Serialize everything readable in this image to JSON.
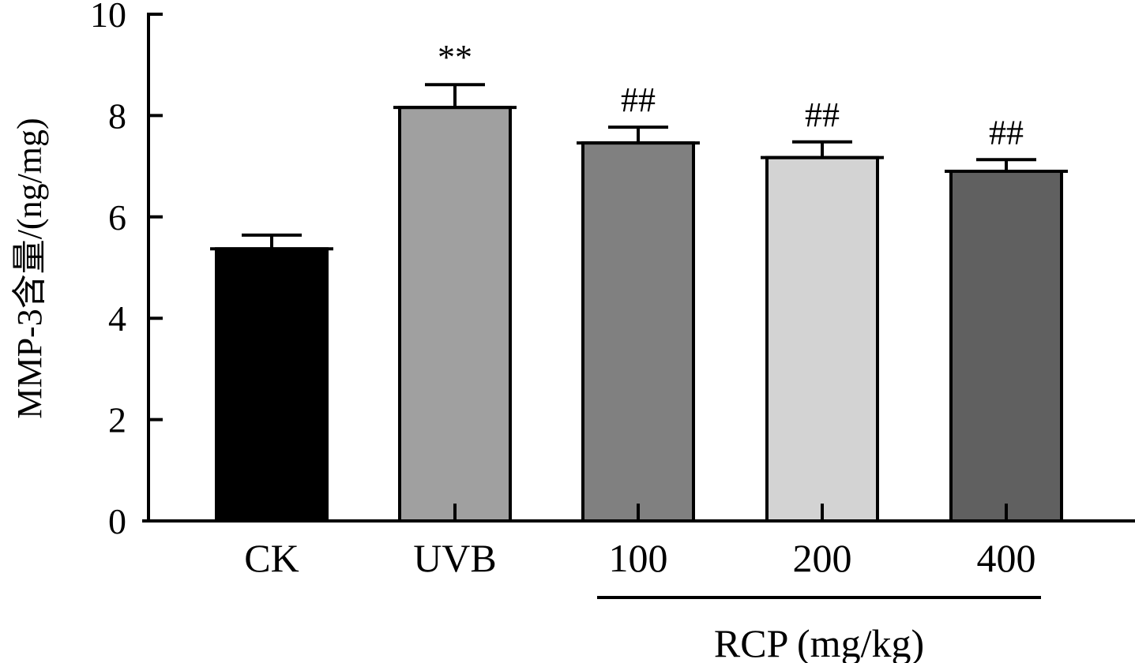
{
  "chart_data": {
    "type": "bar",
    "title": "",
    "ylabel": "MMP-3含量/(ng/mg)",
    "xlabel": "RCP (mg/kg)",
    "xlabel_group_applies_to": [
      "100",
      "200",
      "400"
    ],
    "ylim": [
      0,
      10
    ],
    "yticks": [
      0,
      2,
      4,
      6,
      8,
      10
    ],
    "ytick_labels": [
      "0",
      "2",
      "4",
      "6",
      "8",
      "10"
    ],
    "grid": false,
    "legend": "none",
    "categories": [
      "CK",
      "UVB",
      "100",
      "200",
      "400"
    ],
    "values": [
      5.37,
      8.16,
      7.46,
      7.17,
      6.9
    ],
    "errors": [
      0.27,
      0.45,
      0.31,
      0.31,
      0.23
    ],
    "colors": [
      "#000000",
      "#a0a0a0",
      "#808080",
      "#d3d3d3",
      "#606060"
    ],
    "annotations": [
      "",
      "**",
      "##",
      "##",
      "##"
    ]
  }
}
